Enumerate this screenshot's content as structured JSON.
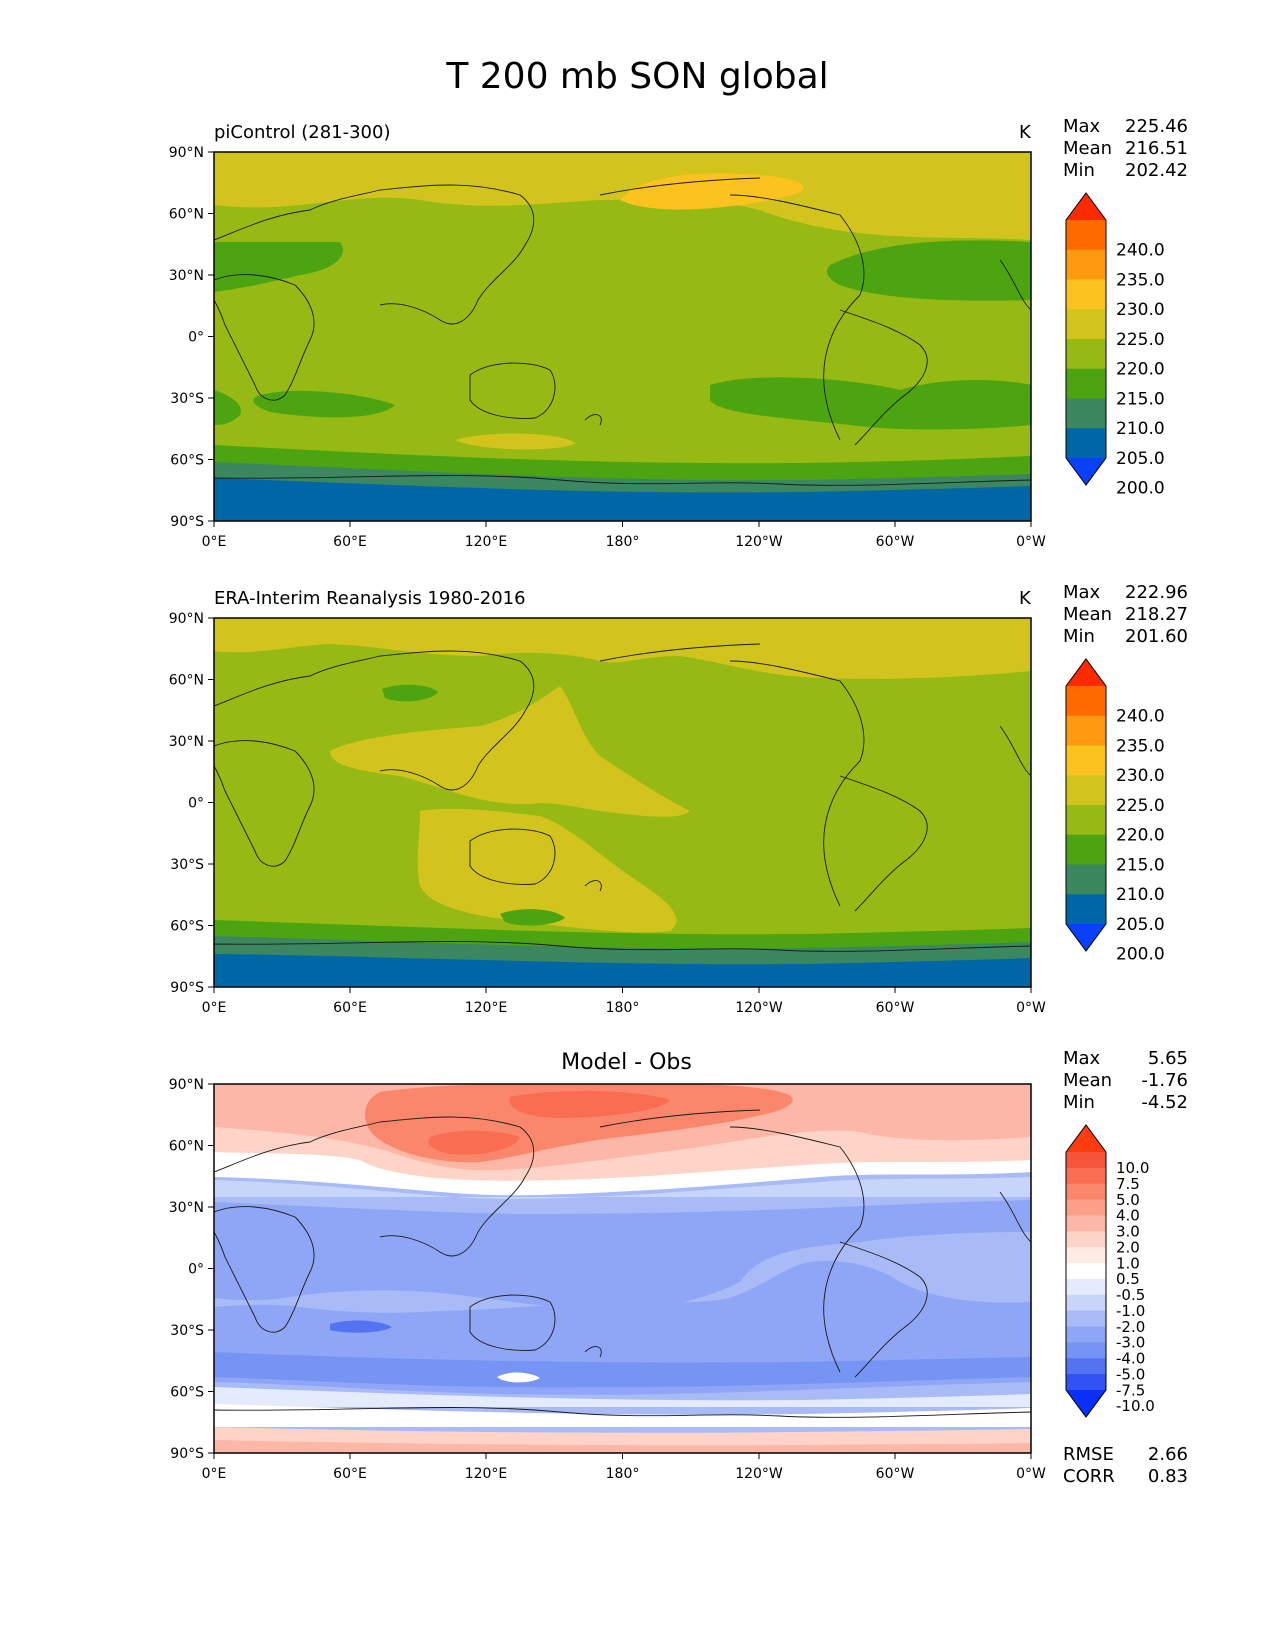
{
  "figure_title": "T 200 mb SON global",
  "x_ticks": [
    "0°E",
    "60°E",
    "120°E",
    "180°",
    "120°W",
    "60°W",
    "0°W"
  ],
  "y_ticks": [
    "90°N",
    "60°N",
    "30°N",
    "0°",
    "30°S",
    "60°S",
    "90°S"
  ],
  "stat_labels": {
    "max": "Max",
    "mean": "Mean",
    "min": "Min",
    "rmse": "RMSE",
    "corr": "CORR"
  },
  "panels": [
    {
      "title": "piControl (281-300)",
      "units": "K",
      "stats": {
        "max": "225.46",
        "mean": "216.51",
        "min": "202.42"
      }
    },
    {
      "title": "ERA-Interim Reanalysis 1980-2016",
      "units": "K",
      "stats": {
        "max": "222.96",
        "mean": "218.27",
        "min": "201.60"
      }
    },
    {
      "title": "Model - Obs",
      "units": "",
      "stats": {
        "max": "5.65",
        "mean": "-1.76",
        "min": "-4.52"
      }
    }
  ],
  "diff_footer": {
    "rmse": "2.66",
    "corr": "0.83"
  },
  "colorbars": {
    "absolute": {
      "levels": [
        "240.0",
        "235.0",
        "230.0",
        "225.0",
        "220.0",
        "215.0",
        "210.0",
        "205.0",
        "200.0"
      ],
      "colors": [
        "#ff2a00",
        "#ff6a00",
        "#ff9a10",
        "#fcc21d",
        "#d3c41d",
        "#96b914",
        "#4ca411",
        "#3a8760",
        "#0067a7",
        "#0a3ffb"
      ]
    },
    "difference": {
      "levels": [
        "10.0",
        "7.5",
        "5.0",
        "4.0",
        "3.0",
        "2.0",
        "1.0",
        "0.5",
        "-0.5",
        "-1.0",
        "-2.0",
        "-3.0",
        "-4.0",
        "-5.0",
        "-7.5",
        "-10.0"
      ],
      "colors": [
        "#ff3b10",
        "#f5553a",
        "#f96d52",
        "#fa866c",
        "#fc9f88",
        "#fdb7a6",
        "#ffd4c8",
        "#ffeae4",
        "#ffffff",
        "#e4ebfd",
        "#c8d5fb",
        "#a9bbf7",
        "#8ea6f5",
        "#7594f3",
        "#5473f2",
        "#3351f4",
        "#0a2ff8"
      ]
    }
  },
  "chart_data": [
    {
      "type": "heatmap",
      "title": "piControl (281-300)",
      "units": "K",
      "x_ticks": [
        "0°E",
        "60°E",
        "120°E",
        "180°",
        "120°W",
        "60°W",
        "0°W"
      ],
      "y_ticks": [
        "90°N",
        "60°N",
        "30°N",
        "0°",
        "30°S",
        "60°S",
        "90°S"
      ],
      "stats": {
        "max": 225.46,
        "mean": 216.51,
        "min": 202.42
      },
      "colorbar_levels": [
        200.0,
        205.0,
        210.0,
        215.0,
        220.0,
        225.0,
        230.0,
        235.0,
        240.0
      ]
    },
    {
      "type": "heatmap",
      "title": "ERA-Interim Reanalysis 1980-2016",
      "units": "K",
      "x_ticks": [
        "0°E",
        "60°E",
        "120°E",
        "180°",
        "120°W",
        "60°W",
        "0°W"
      ],
      "y_ticks": [
        "90°N",
        "60°N",
        "30°N",
        "0°",
        "30°S",
        "60°S",
        "90°S"
      ],
      "stats": {
        "max": 222.96,
        "mean": 218.27,
        "min": 201.6
      },
      "colorbar_levels": [
        200.0,
        205.0,
        210.0,
        215.0,
        220.0,
        225.0,
        230.0,
        235.0,
        240.0
      ]
    },
    {
      "type": "heatmap",
      "title": "Model - Obs",
      "x_ticks": [
        "0°E",
        "60°E",
        "120°E",
        "180°",
        "120°W",
        "60°W",
        "0°W"
      ],
      "y_ticks": [
        "90°N",
        "60°N",
        "30°N",
        "0°",
        "30°S",
        "60°S",
        "90°S"
      ],
      "stats": {
        "max": 5.65,
        "mean": -1.76,
        "min": -4.52,
        "rmse": 2.66,
        "corr": 0.83
      },
      "colorbar_levels": [
        -10.0,
        -7.5,
        -5.0,
        -4.0,
        -3.0,
        -2.0,
        -1.0,
        -0.5,
        0.5,
        1.0,
        2.0,
        3.0,
        4.0,
        5.0,
        7.5,
        10.0
      ]
    }
  ]
}
